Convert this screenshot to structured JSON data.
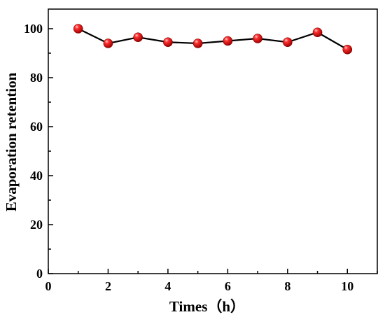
{
  "chart_data": {
    "type": "line",
    "title": "",
    "xlabel": "Times（h）",
    "ylabel": "Evaporation retention",
    "xlim": [
      0,
      11
    ],
    "ylim": [
      0,
      108
    ],
    "x_ticks": [
      "0",
      "2",
      "4",
      "6",
      "8",
      "10"
    ],
    "y_ticks": [
      "0",
      "20",
      "40",
      "60",
      "80",
      "100"
    ],
    "grid": false,
    "x": [
      1,
      2,
      3,
      4,
      5,
      6,
      7,
      8,
      9,
      10
    ],
    "series": [
      {
        "values": [
          100,
          94,
          96.5,
          94.5,
          94,
          95,
          96,
          94.5,
          98.5,
          91.5
        ],
        "line_color": "#000000",
        "marker_color": "#e8141c"
      }
    ]
  }
}
